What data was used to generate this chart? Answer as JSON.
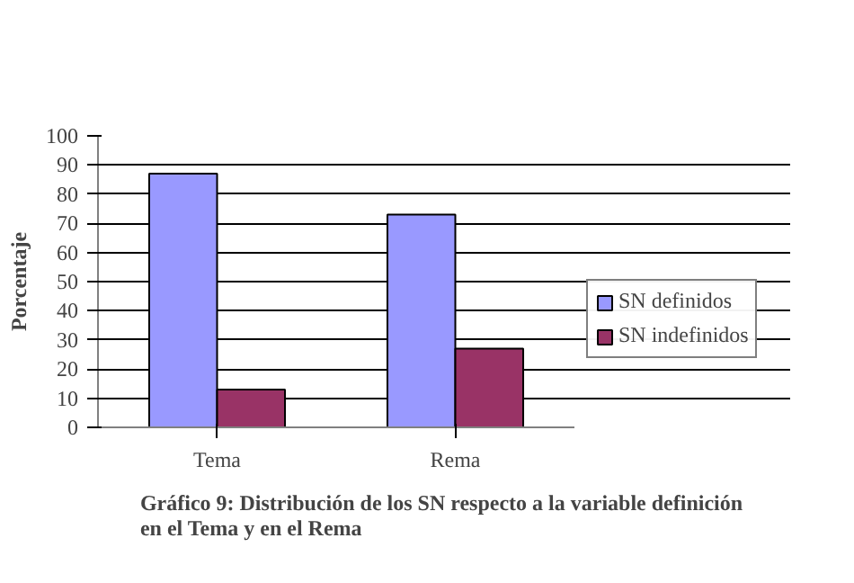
{
  "chart_data": {
    "type": "bar",
    "title": "Gráfico  9: Distribución de los SN respecto a la variable definición\nen el Tema y en el Rema",
    "ylabel": "Porcentaje",
    "categories": [
      "Tema",
      "Rema"
    ],
    "series": [
      {
        "name": "SN definidos",
        "color": "#9999ff",
        "values": [
          87,
          73
        ]
      },
      {
        "name": "SN indefinidos",
        "color": "#993366",
        "values": [
          13,
          27
        ]
      }
    ],
    "ylim": [
      0,
      100
    ],
    "yticks": [
      0,
      10,
      20,
      30,
      40,
      50,
      60,
      70,
      80,
      90,
      100
    ],
    "grid": "y",
    "legend": "right"
  }
}
